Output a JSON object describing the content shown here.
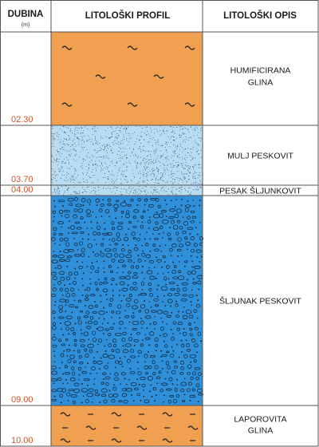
{
  "header": {
    "depth_title": "DUBINA",
    "depth_unit": "(m)",
    "profile_title": "LITOLOŠKI PROFIL",
    "description_title": "LITOLOŠKI OPIS"
  },
  "layers": [
    {
      "id": "humificirana-glina",
      "top": 0.0,
      "bottom": 2.3,
      "top_label": "",
      "bottom_label": "02.30",
      "description": [
        "HUMIFICIRANA",
        "GLINA"
      ],
      "fill": "#f0a050",
      "pattern": "clay-tilde"
    },
    {
      "id": "mulj-peskovit",
      "top": 2.3,
      "bottom": 3.7,
      "top_label": "",
      "bottom_label": "03.70",
      "description": [
        "MULJ PESKOVIT"
      ],
      "fill": "#b9dcf2",
      "pattern": "fine-dots"
    },
    {
      "id": "pesak-sljunkovit",
      "top": 3.7,
      "bottom": 4.0,
      "top_label": "",
      "bottom_label": "04.00",
      "description": [
        "PESAK ŠLJUNKOVIT"
      ],
      "fill": "#b9dcf2",
      "pattern": "fine-dots"
    },
    {
      "id": "sljunak-peskovit",
      "top": 4.0,
      "bottom": 9.0,
      "top_label": "",
      "bottom_label": "09.00",
      "description": [
        "ŠLJUNAK PESKOVIT"
      ],
      "fill": "#2f8fd8",
      "pattern": "gravel"
    },
    {
      "id": "laporovita-glina",
      "top": 9.0,
      "bottom": 10.0,
      "top_label": "",
      "bottom_label": "10.00",
      "description": [
        "LAPOROVITA",
        "GLINA"
      ],
      "fill": "#f0a050",
      "pattern": "marl-tilde-dash"
    }
  ],
  "colors": {
    "border": "#555555",
    "depth_label": "#c8552a",
    "clay": "#f0a050",
    "silt_sand": "#b9dcf2",
    "gravel": "#2f8fd8"
  }
}
